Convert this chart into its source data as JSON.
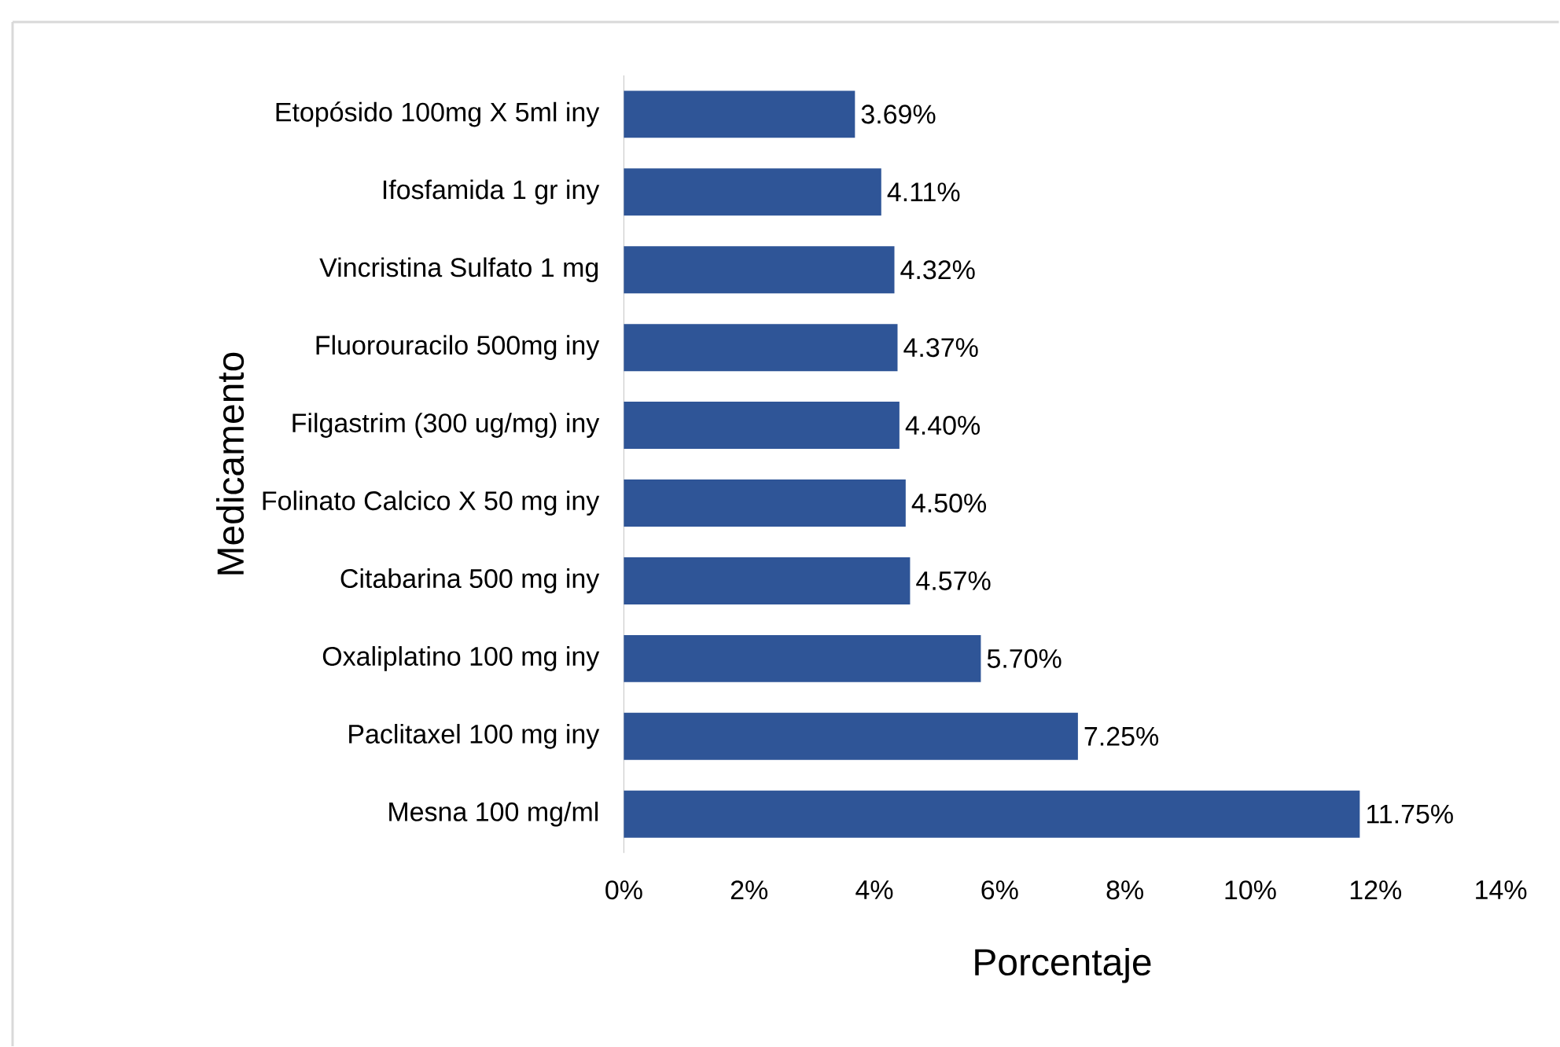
{
  "chart_data": {
    "type": "bar",
    "orientation": "horizontal",
    "xlabel": "Porcentaje",
    "ylabel": "Medicamento",
    "categories": [
      "Etopósido 100mg X 5ml iny",
      "Ifosfamida 1 gr iny",
      "Vincristina Sulfato 1 mg",
      "Fluorouracilo 500mg iny",
      "Filgastrim (300 ug/mg) iny",
      "Folinato Calcico X 50 mg iny",
      "Citabarina 500 mg iny",
      "Oxaliplatino 100 mg iny",
      "Paclitaxel 100 mg iny",
      "Mesna 100 mg/ml"
    ],
    "values": [
      3.69,
      4.11,
      4.32,
      4.37,
      4.4,
      4.5,
      4.57,
      5.7,
      7.25,
      11.75
    ],
    "value_labels": [
      "3.69%",
      "4.11%",
      "4.32%",
      "4.37%",
      "4.40%",
      "4.50%",
      "4.57%",
      "5.70%",
      "7.25%",
      "11.75%"
    ],
    "color": "#2f5597",
    "xlim": [
      0,
      14
    ],
    "xticks": [
      {
        "value": 0,
        "label": "0%"
      },
      {
        "value": 2,
        "label": "2%"
      },
      {
        "value": 4,
        "label": "4%"
      },
      {
        "value": 6,
        "label": "6%"
      },
      {
        "value": 8,
        "label": "8%"
      },
      {
        "value": 10,
        "label": "10%"
      },
      {
        "value": 12,
        "label": "12%"
      },
      {
        "value": 14,
        "label": "14%"
      }
    ],
    "grid": false
  }
}
